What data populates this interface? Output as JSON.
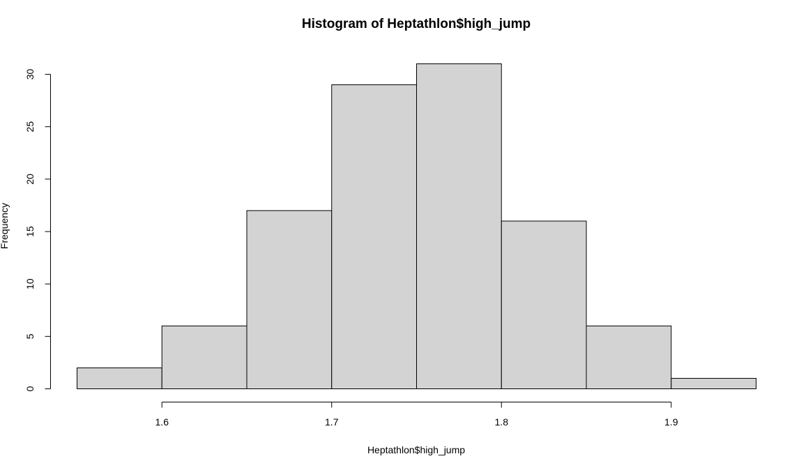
{
  "chart_data": {
    "type": "bar",
    "subtype": "histogram",
    "title": "Histogram of Heptathlon$high_jump",
    "xlabel": "Heptathlon$high_jump",
    "ylabel": "Frequency",
    "bin_edges": [
      1.55,
      1.6,
      1.65,
      1.7,
      1.75,
      1.8,
      1.85,
      1.9,
      1.95
    ],
    "values": [
      2,
      6,
      17,
      29,
      31,
      16,
      6,
      1
    ],
    "xlim": [
      1.55,
      1.95
    ],
    "ylim": [
      0,
      31
    ],
    "x_ticks": [
      1.6,
      1.7,
      1.8,
      1.9
    ],
    "x_tick_labels": [
      "1.6",
      "1.7",
      "1.8",
      "1.9"
    ],
    "y_ticks": [
      0,
      5,
      10,
      15,
      20,
      25,
      30
    ],
    "y_tick_labels": [
      "0",
      "5",
      "10",
      "15",
      "20",
      "25",
      "30"
    ],
    "grid": false,
    "bar_color": "#d3d3d3",
    "edge_color": "#000000"
  }
}
